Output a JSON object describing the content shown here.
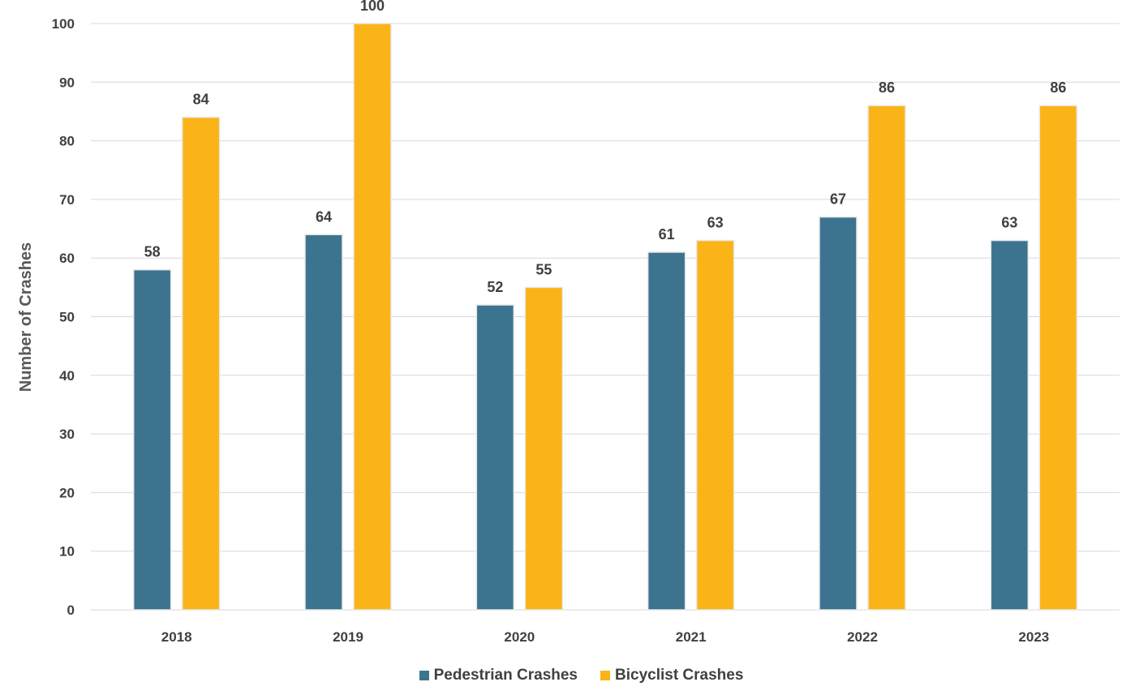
{
  "chart_data": {
    "type": "bar",
    "categories": [
      "2018",
      "2019",
      "2020",
      "2021",
      "2022",
      "2023"
    ],
    "series": [
      {
        "name": "Pedestrian Crashes",
        "color": "#3c748f",
        "values": [
          58,
          64,
          52,
          61,
          67,
          63
        ]
      },
      {
        "name": "Bicyclist Crashes",
        "color": "#fbb417",
        "values": [
          84,
          100,
          55,
          63,
          86,
          86
        ]
      }
    ],
    "title": "",
    "xlabel": "",
    "ylabel": "Number of Crashes",
    "ylim": [
      0,
      100
    ],
    "yticks": [
      0,
      10,
      20,
      30,
      40,
      50,
      60,
      70,
      80,
      90,
      100
    ],
    "grid": true,
    "legend_position": "bottom",
    "data_labels": true
  }
}
